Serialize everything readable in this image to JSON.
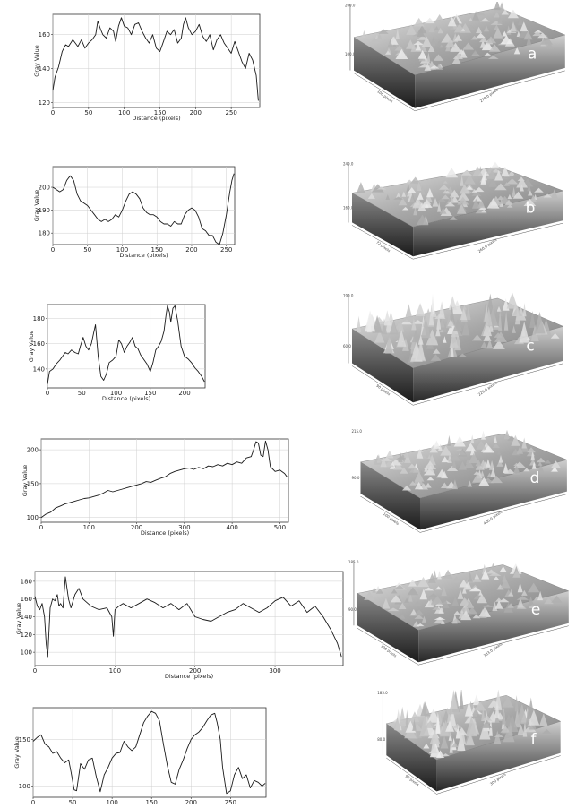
{
  "figure": {
    "panels": [
      {
        "letter": "a",
        "surface": {
          "z_max_label": "200.0",
          "z_min_label": "100.0",
          "y_axis_label": "100 pixels",
          "x_axis_label": "278.0 pixels"
        }
      },
      {
        "letter": "b",
        "surface": {
          "z_max_label": "240.0",
          "z_min_label": "160.0",
          "y_axis_label": "72 pixels",
          "x_axis_label": "260.0 pixels"
        }
      },
      {
        "letter": "c",
        "surface": {
          "z_max_label": "190.0",
          "z_min_label": "60.0",
          "y_axis_label": "90 pixels",
          "x_axis_label": "229.0 pixels"
        }
      },
      {
        "letter": "d",
        "surface": {
          "z_max_label": "215.0",
          "z_min_label": "90.0",
          "y_axis_label": "100 pixels",
          "x_axis_label": "400.0 pixels"
        }
      },
      {
        "letter": "e",
        "surface": {
          "z_max_label": "185.0",
          "z_min_label": "90.0",
          "y_axis_label": "100 pixels",
          "x_axis_label": "383.0 pixels"
        }
      },
      {
        "letter": "f",
        "surface": {
          "z_max_label": "185.0",
          "z_min_label": "80.0",
          "y_axis_label": "95 pixels",
          "x_axis_label": "300 pixels"
        }
      }
    ]
  },
  "chart_data": [
    {
      "type": "line",
      "xlabel": "Distance (pixels)",
      "ylabel": "Gray Value",
      "xlim": [
        0,
        290
      ],
      "ylim": [
        117,
        172
      ],
      "xticks": [
        0,
        50,
        100,
        150,
        200,
        250
      ],
      "yticks": [
        120,
        140,
        160
      ],
      "grid": true,
      "x": [
        0,
        3,
        8,
        13,
        18,
        22,
        28,
        35,
        40,
        45,
        50,
        55,
        60,
        63,
        67,
        70,
        75,
        80,
        85,
        88,
        92,
        96,
        100,
        105,
        110,
        115,
        120,
        125,
        130,
        135,
        140,
        145,
        150,
        155,
        160,
        165,
        170,
        175,
        180,
        183,
        186,
        190,
        195,
        200,
        205,
        210,
        215,
        220,
        225,
        230,
        235,
        240,
        245,
        250,
        255,
        260,
        265,
        270,
        275,
        280,
        285,
        288
      ],
      "y": [
        127,
        135,
        141,
        150,
        154,
        153,
        157,
        153,
        157,
        152,
        155,
        157,
        160,
        168,
        163,
        160,
        158,
        164,
        162,
        156,
        165,
        170,
        165,
        164,
        160,
        166,
        167,
        162,
        158,
        155,
        160,
        152,
        150,
        156,
        162,
        160,
        163,
        155,
        158,
        166,
        170,
        164,
        160,
        162,
        166,
        159,
        156,
        160,
        151,
        157,
        160,
        155,
        152,
        149,
        156,
        150,
        144,
        140,
        149,
        145,
        136,
        121
      ]
    },
    {
      "type": "line",
      "xlabel": "Distance (pixels)",
      "ylabel": "Gray Value",
      "xlim": [
        0,
        262
      ],
      "ylim": [
        175,
        209
      ],
      "xticks": [
        0,
        50,
        100,
        150,
        200,
        250
      ],
      "yticks": [
        180,
        190,
        200
      ],
      "grid": true,
      "x": [
        0,
        5,
        10,
        15,
        20,
        25,
        30,
        35,
        40,
        45,
        50,
        55,
        60,
        65,
        70,
        75,
        80,
        85,
        90,
        95,
        100,
        105,
        110,
        115,
        120,
        125,
        130,
        135,
        140,
        145,
        150,
        155,
        160,
        165,
        170,
        175,
        180,
        185,
        190,
        195,
        200,
        205,
        210,
        215,
        220,
        225,
        230,
        235,
        240,
        245,
        250,
        255,
        258,
        261
      ],
      "y": [
        200,
        199,
        198,
        199,
        203,
        205,
        203,
        197,
        194,
        193,
        192,
        190,
        188,
        186,
        185,
        186,
        185,
        186,
        188,
        187,
        190,
        194,
        197,
        198,
        197,
        195,
        191,
        189,
        188,
        188,
        187,
        185,
        184,
        184,
        183,
        185,
        184,
        184,
        188,
        190,
        191,
        190,
        187,
        182,
        181,
        179,
        179,
        176,
        175,
        180,
        188,
        198,
        203,
        206
      ]
    },
    {
      "type": "line",
      "xlabel": "Distance (pixels)",
      "ylabel": "Gray Value",
      "xlim": [
        0,
        230
      ],
      "ylim": [
        125,
        191
      ],
      "xticks": [
        0,
        50,
        100,
        150,
        200
      ],
      "yticks": [
        140,
        160,
        180
      ],
      "grid": true,
      "x": [
        0,
        3,
        8,
        13,
        18,
        22,
        26,
        30,
        35,
        40,
        45,
        48,
        52,
        56,
        60,
        64,
        68,
        70,
        74,
        78,
        82,
        86,
        90,
        95,
        100,
        104,
        108,
        112,
        116,
        120,
        124,
        128,
        132,
        136,
        140,
        145,
        150,
        154,
        158,
        162,
        166,
        170,
        173,
        175,
        178,
        180,
        183,
        186,
        190,
        195,
        200,
        205,
        210,
        215,
        220,
        225,
        229
      ],
      "y": [
        128,
        138,
        140,
        144,
        147,
        150,
        153,
        152,
        155,
        153,
        152,
        158,
        165,
        158,
        155,
        160,
        170,
        175,
        150,
        134,
        131,
        136,
        145,
        147,
        150,
        163,
        160,
        153,
        158,
        161,
        165,
        158,
        156,
        151,
        148,
        144,
        138,
        145,
        155,
        158,
        162,
        170,
        183,
        190,
        185,
        177,
        188,
        190,
        178,
        158,
        150,
        148,
        145,
        141,
        138,
        134,
        130
      ]
    },
    {
      "type": "line",
      "xlabel": "Distance (pixels)",
      "ylabel": "Gray Value",
      "xlim": [
        0,
        518
      ],
      "ylim": [
        93,
        216
      ],
      "xticks": [
        0,
        100,
        200,
        300,
        400,
        500
      ],
      "yticks": [
        100,
        150,
        200
      ],
      "grid": true,
      "x": [
        0,
        10,
        20,
        30,
        40,
        50,
        60,
        70,
        80,
        90,
        100,
        110,
        120,
        130,
        140,
        150,
        160,
        170,
        180,
        190,
        200,
        210,
        220,
        230,
        240,
        250,
        260,
        270,
        280,
        290,
        300,
        310,
        320,
        330,
        340,
        350,
        360,
        370,
        380,
        390,
        400,
        410,
        420,
        430,
        440,
        445,
        450,
        455,
        460,
        465,
        470,
        475,
        480,
        490,
        500,
        510,
        515
      ],
      "y": [
        100,
        105,
        108,
        114,
        117,
        120,
        122,
        124,
        126,
        128,
        129,
        131,
        133,
        136,
        140,
        138,
        140,
        142,
        144,
        146,
        148,
        150,
        153,
        152,
        155,
        158,
        160,
        165,
        168,
        170,
        172,
        173,
        171,
        174,
        172,
        176,
        175,
        178,
        176,
        180,
        178,
        182,
        180,
        188,
        190,
        200,
        212,
        210,
        192,
        190,
        213,
        200,
        175,
        168,
        170,
        165,
        160
      ]
    },
    {
      "type": "line",
      "xlabel": "Distance (pixels)",
      "ylabel": "Gray Value",
      "xlim": [
        0,
        385
      ],
      "ylim": [
        85,
        191
      ],
      "xticks": [
        0,
        100,
        200,
        300
      ],
      "yticks": [
        100,
        120,
        140,
        160,
        180
      ],
      "grid": true,
      "x": [
        0,
        3,
        6,
        9,
        12,
        14,
        16,
        19,
        22,
        25,
        28,
        30,
        32,
        35,
        38,
        42,
        45,
        50,
        55,
        60,
        70,
        80,
        90,
        96,
        98,
        100,
        105,
        110,
        120,
        130,
        140,
        150,
        160,
        170,
        180,
        190,
        200,
        210,
        220,
        230,
        240,
        250,
        260,
        270,
        280,
        290,
        300,
        310,
        320,
        330,
        340,
        350,
        360,
        370,
        378,
        383
      ],
      "y": [
        163,
        152,
        148,
        155,
        140,
        110,
        95,
        150,
        160,
        158,
        165,
        152,
        155,
        150,
        185,
        160,
        150,
        165,
        172,
        160,
        152,
        148,
        150,
        140,
        118,
        148,
        152,
        155,
        150,
        155,
        160,
        156,
        150,
        155,
        148,
        155,
        140,
        137,
        135,
        140,
        145,
        148,
        155,
        150,
        145,
        150,
        158,
        162,
        152,
        158,
        145,
        152,
        140,
        125,
        110,
        95
      ]
    },
    {
      "type": "line",
      "xlabel": "",
      "ylabel": "Gray Value",
      "xlim": [
        0,
        295
      ],
      "ylim": [
        88,
        184
      ],
      "xticks": [
        0,
        50,
        100,
        150,
        200,
        250
      ],
      "yticks": [
        100,
        150
      ],
      "grid": true,
      "x": [
        0,
        5,
        10,
        15,
        20,
        25,
        30,
        35,
        40,
        45,
        48,
        52,
        55,
        60,
        65,
        70,
        75,
        80,
        85,
        90,
        95,
        100,
        105,
        110,
        115,
        120,
        125,
        130,
        135,
        140,
        145,
        150,
        155,
        160,
        165,
        170,
        175,
        180,
        185,
        190,
        195,
        200,
        205,
        210,
        215,
        220,
        225,
        230,
        233,
        237,
        240,
        245,
        250,
        255,
        260,
        265,
        270,
        275,
        280,
        285,
        290,
        294
      ],
      "y": [
        148,
        152,
        155,
        145,
        142,
        135,
        137,
        130,
        125,
        128,
        115,
        96,
        95,
        124,
        118,
        128,
        130,
        110,
        94,
        112,
        120,
        130,
        135,
        136,
        148,
        142,
        138,
        142,
        155,
        168,
        175,
        180,
        178,
        170,
        145,
        122,
        104,
        102,
        118,
        128,
        140,
        150,
        155,
        158,
        163,
        170,
        176,
        178,
        168,
        150,
        120,
        92,
        95,
        112,
        120,
        108,
        112,
        98,
        106,
        104,
        100,
        103
      ]
    }
  ]
}
